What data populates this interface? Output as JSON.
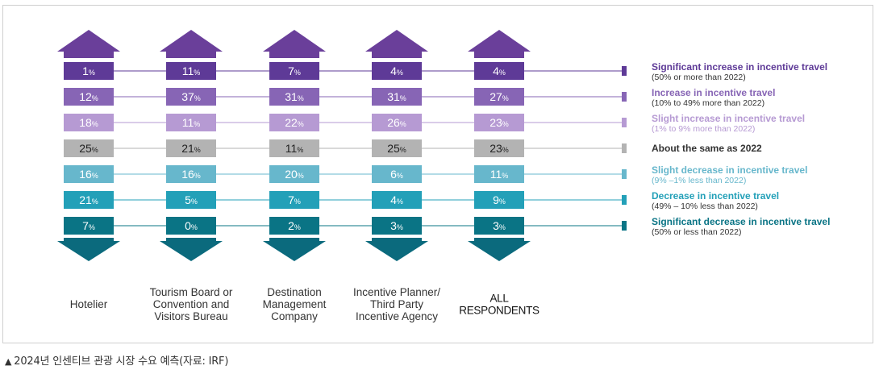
{
  "caption": "2024년 인센티브 관광 시장 수요 예측(자료: IRF)",
  "chart_data": {
    "type": "table",
    "unit": "%",
    "columns": [
      {
        "label_lines": [
          "Hotelier"
        ],
        "bold": false,
        "values": [
          1,
          12,
          18,
          25,
          16,
          21,
          7
        ]
      },
      {
        "label_lines": [
          "Tourism Board or",
          "Convention and",
          "Visitors Bureau"
        ],
        "bold": false,
        "values": [
          11,
          37,
          11,
          21,
          16,
          5,
          0
        ]
      },
      {
        "label_lines": [
          "Destination",
          "Management",
          "Company"
        ],
        "bold": false,
        "values": [
          7,
          31,
          22,
          11,
          20,
          7,
          2
        ]
      },
      {
        "label_lines": [
          "Incentive Planner/",
          "Third Party",
          "Incentive Agency"
        ],
        "bold": false,
        "values": [
          4,
          31,
          26,
          25,
          6,
          4,
          3
        ]
      },
      {
        "label_lines": [
          "ALL",
          "RESPONDENTS"
        ],
        "bold": true,
        "values": [
          4,
          27,
          23,
          23,
          11,
          9,
          3
        ]
      }
    ],
    "rows": [
      {
        "title": "Significant increase in incentive travel",
        "sub": "(50% or more than 2022)",
        "color": "#5e3a97"
      },
      {
        "title": "Increase in incentive travel",
        "sub": "(10% to 49% more than 2022)",
        "color": "#8765b5"
      },
      {
        "title": "Slight increase in incentive travel",
        "sub": "(1% to 9% more than 2022)",
        "color": "#b69ad3"
      },
      {
        "title": "About the same as 2022",
        "sub": "",
        "color": "#b3b3b3"
      },
      {
        "title": "Slight decrease in incentive travel",
        "sub": "(9% –1% less than 2022)",
        "color": "#67b7cc"
      },
      {
        "title": "Decrease in incentive travel",
        "sub": "(49% – 10% less than 2022)",
        "color": "#23a0b8"
      },
      {
        "title": "Significant decrease in incentive travel",
        "sub": "(50% or less than 2022)",
        "color": "#0a7485"
      }
    ],
    "arrow_up_color": "#6a3f9a",
    "arrow_down_color": "#0b6a7d",
    "title_colors": [
      "#5e3a97",
      "#8765b5",
      "#b69ad3",
      "#333333",
      "#67b7cc",
      "#23a0b8",
      "#0a7485"
    ],
    "sub_colors": [
      "#333333",
      "#333333",
      "#b69ad3",
      "#333333",
      "#67b7cc",
      "#333333",
      "#333333"
    ]
  }
}
